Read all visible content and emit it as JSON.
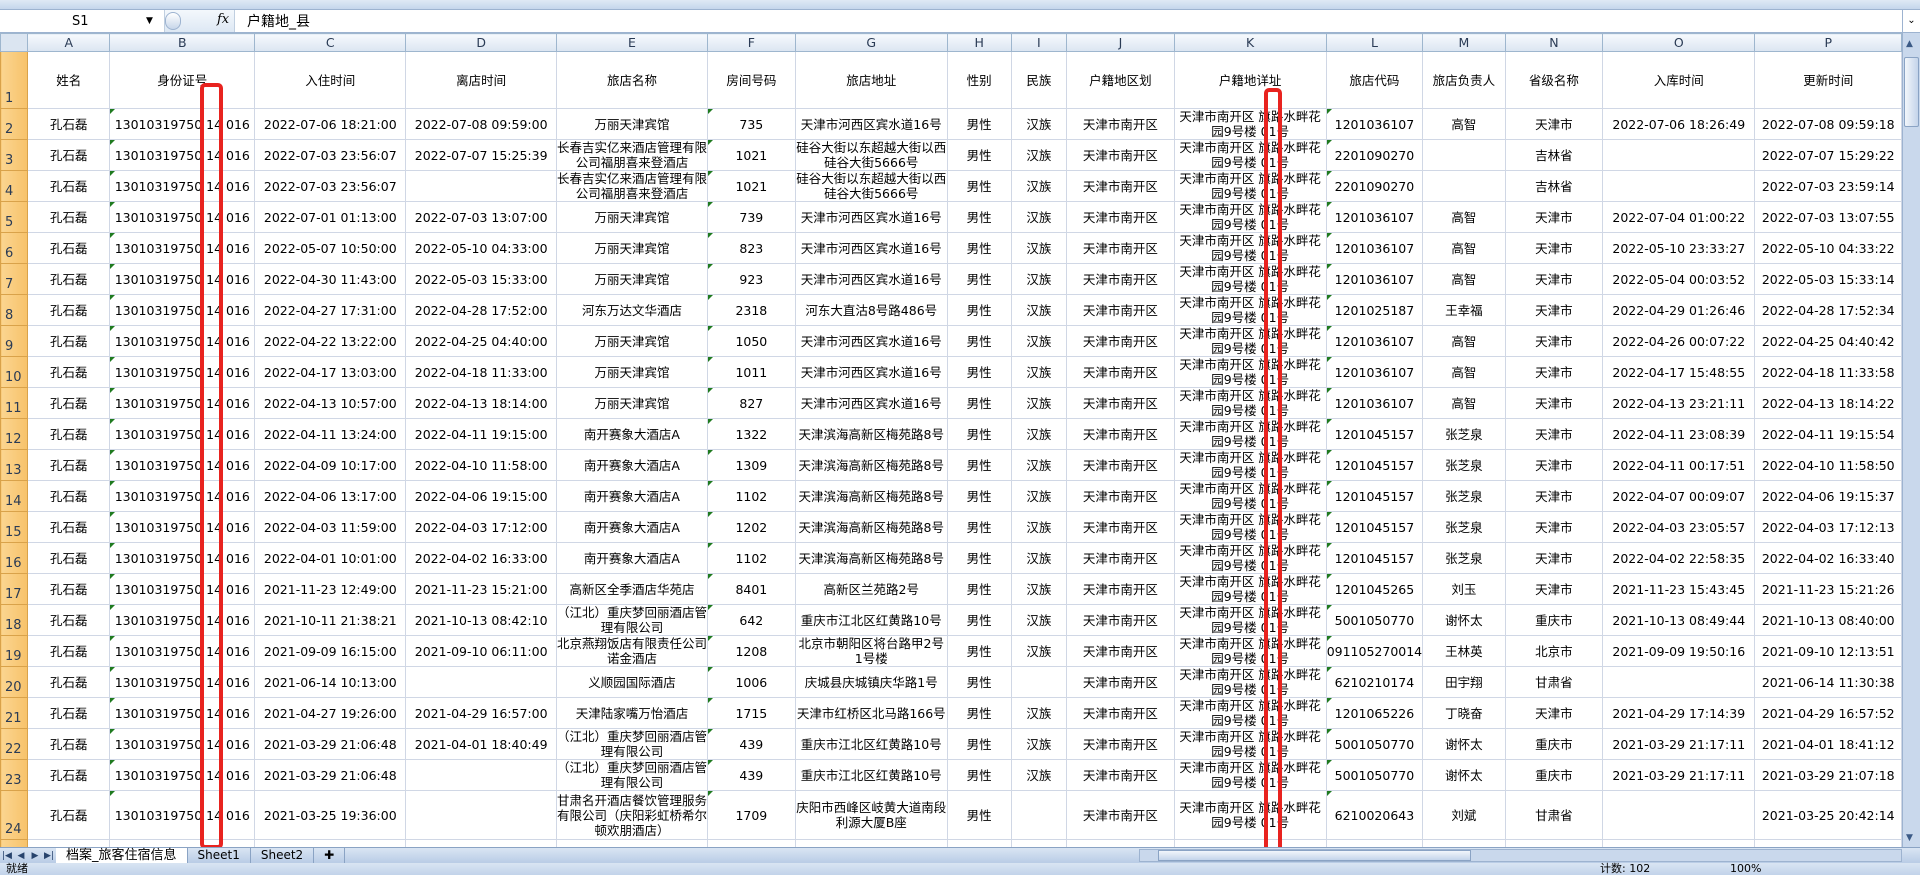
{
  "formula_bar": {
    "name_box": "S1",
    "fx_label": "fx",
    "content": "户籍地_县"
  },
  "columns": [
    "A",
    "B",
    "C",
    "D",
    "E",
    "F",
    "G",
    "H",
    "I",
    "J",
    "K",
    "L",
    "M",
    "N",
    "O",
    "P"
  ],
  "headers": [
    "姓名",
    "身份证号",
    "入住时间",
    "离店时间",
    "旅店名称",
    "房间号码",
    "旅店地址",
    "性别",
    "民族",
    "户籍地区划",
    "户籍地详址",
    "旅店代码",
    "旅店负责人",
    "省级名称",
    "入库时间",
    "更新时间"
  ],
  "rows": [
    {
      "num": "2",
      "cells": [
        "孔石磊",
        "13010319750 14 016",
        "2022-07-06 18:21:00",
        "2022-07-08 09:59:00",
        "万丽天津宾馆",
        "735",
        "天津市河西区宾水道16号",
        "男性",
        "汉族",
        "天津市南开区",
        "天津市南开区 旗路水畔花园9号楼 01号",
        "1201036107",
        "高智",
        "天津市",
        "2022-07-06 18:26:49",
        "2022-07-08 09:59:18"
      ]
    },
    {
      "num": "3",
      "cells": [
        "孔石磊",
        "13010319750 14 016",
        "2022-07-03 23:56:07",
        "2022-07-07 15:25:39",
        "长春吉实亿来酒店管理有限公司福朋喜来登酒店",
        "1021",
        "硅谷大街以东超越大街以西硅谷大街5666号",
        "男性",
        "汉族",
        "天津市南开区",
        "天津市南开区 旗路水畔花园9号楼 01号",
        "2201090270",
        "",
        "吉林省",
        "",
        "2022-07-07 15:29:22"
      ]
    },
    {
      "num": "4",
      "cells": [
        "孔石磊",
        "13010319750 14 016",
        "2022-07-03 23:56:07",
        "",
        "长春吉实亿来酒店管理有限公司福朋喜来登酒店",
        "1021",
        "硅谷大街以东超越大街以西硅谷大街5666号",
        "男性",
        "汉族",
        "天津市南开区",
        "天津市南开区 旗路水畔花园9号楼 01号",
        "2201090270",
        "",
        "吉林省",
        "",
        "2022-07-03 23:59:14"
      ]
    },
    {
      "num": "5",
      "cells": [
        "孔石磊",
        "13010319750 14 016",
        "2022-07-01 01:13:00",
        "2022-07-03 13:07:00",
        "万丽天津宾馆",
        "739",
        "天津市河西区宾水道16号",
        "男性",
        "汉族",
        "天津市南开区",
        "天津市南开区 旗路水畔花园9号楼 01号",
        "1201036107",
        "高智",
        "天津市",
        "2022-07-04 01:00:22",
        "2022-07-03 13:07:55"
      ]
    },
    {
      "num": "6",
      "cells": [
        "孔石磊",
        "13010319750 14 016",
        "2022-05-07 10:50:00",
        "2022-05-10 04:33:00",
        "万丽天津宾馆",
        "823",
        "天津市河西区宾水道16号",
        "男性",
        "汉族",
        "天津市南开区",
        "天津市南开区 旗路水畔花园9号楼 01号",
        "1201036107",
        "高智",
        "天津市",
        "2022-05-10 23:33:27",
        "2022-05-10 04:33:22"
      ]
    },
    {
      "num": "7",
      "cells": [
        "孔石磊",
        "13010319750 14 016",
        "2022-04-30 11:43:00",
        "2022-05-03 15:33:00",
        "万丽天津宾馆",
        "923",
        "天津市河西区宾水道16号",
        "男性",
        "汉族",
        "天津市南开区",
        "天津市南开区 旗路水畔花园9号楼 01号",
        "1201036107",
        "高智",
        "天津市",
        "2022-05-04 00:03:52",
        "2022-05-03 15:33:14"
      ]
    },
    {
      "num": "8",
      "cells": [
        "孔石磊",
        "13010319750 14 016",
        "2022-04-27 17:31:00",
        "2022-04-28 17:52:00",
        "河东万达文华酒店",
        "2318",
        "河东大直沽8号路486号",
        "男性",
        "汉族",
        "天津市南开区",
        "天津市南开区 旗路水畔花园9号楼 01号",
        "1201025187",
        "王幸福",
        "天津市",
        "2022-04-29 01:26:46",
        "2022-04-28 17:52:34"
      ]
    },
    {
      "num": "9",
      "cells": [
        "孔石磊",
        "13010319750 14 016",
        "2022-04-22 13:22:00",
        "2022-04-25 04:40:00",
        "万丽天津宾馆",
        "1050",
        "天津市河西区宾水道16号",
        "男性",
        "汉族",
        "天津市南开区",
        "天津市南开区 旗路水畔花园9号楼 01号",
        "1201036107",
        "高智",
        "天津市",
        "2022-04-26 00:07:22",
        "2022-04-25 04:40:42"
      ]
    },
    {
      "num": "10",
      "cells": [
        "孔石磊",
        "13010319750 14 016",
        "2022-04-17 13:03:00",
        "2022-04-18 11:33:00",
        "万丽天津宾馆",
        "1011",
        "天津市河西区宾水道16号",
        "男性",
        "汉族",
        "天津市南开区",
        "天津市南开区 旗路水畔花园9号楼 01号",
        "1201036107",
        "高智",
        "天津市",
        "2022-04-17 15:48:55",
        "2022-04-18 11:33:58"
      ]
    },
    {
      "num": "11",
      "cells": [
        "孔石磊",
        "13010319750 14 016",
        "2022-04-13 10:57:00",
        "2022-04-13 18:14:00",
        "万丽天津宾馆",
        "827",
        "天津市河西区宾水道16号",
        "男性",
        "汉族",
        "天津市南开区",
        "天津市南开区 旗路水畔花园9号楼 01号",
        "1201036107",
        "高智",
        "天津市",
        "2022-04-13 23:21:11",
        "2022-04-13 18:14:22"
      ]
    },
    {
      "num": "12",
      "cells": [
        "孔石磊",
        "13010319750 14 016",
        "2022-04-11 13:24:00",
        "2022-04-11 19:15:00",
        "南开赛象大酒店A",
        "1322",
        "天津滨海高新区梅苑路8号",
        "男性",
        "汉族",
        "天津市南开区",
        "天津市南开区 旗路水畔花园9号楼 01号",
        "1201045157",
        "张芝泉",
        "天津市",
        "2022-04-11 23:08:39",
        "2022-04-11 19:15:54"
      ]
    },
    {
      "num": "13",
      "cells": [
        "孔石磊",
        "13010319750 14 016",
        "2022-04-09 10:17:00",
        "2022-04-10 11:58:00",
        "南开赛象大酒店A",
        "1309",
        "天津滨海高新区梅苑路8号",
        "男性",
        "汉族",
        "天津市南开区",
        "天津市南开区 旗路水畔花园9号楼 01号",
        "1201045157",
        "张芝泉",
        "天津市",
        "2022-04-11 00:17:51",
        "2022-04-10 11:58:50"
      ]
    },
    {
      "num": "14",
      "cells": [
        "孔石磊",
        "13010319750 14 016",
        "2022-04-06 13:17:00",
        "2022-04-06 19:15:00",
        "南开赛象大酒店A",
        "1102",
        "天津滨海高新区梅苑路8号",
        "男性",
        "汉族",
        "天津市南开区",
        "天津市南开区 旗路水畔花园9号楼 01号",
        "1201045157",
        "张芝泉",
        "天津市",
        "2022-04-07 00:09:07",
        "2022-04-06 19:15:37"
      ]
    },
    {
      "num": "15",
      "cells": [
        "孔石磊",
        "13010319750 14 016",
        "2022-04-03 11:59:00",
        "2022-04-03 17:12:00",
        "南开赛象大酒店A",
        "1202",
        "天津滨海高新区梅苑路8号",
        "男性",
        "汉族",
        "天津市南开区",
        "天津市南开区 旗路水畔花园9号楼 01号",
        "1201045157",
        "张芝泉",
        "天津市",
        "2022-04-03 23:05:57",
        "2022-04-03 17:12:13"
      ]
    },
    {
      "num": "16",
      "cells": [
        "孔石磊",
        "13010319750 14 016",
        "2022-04-01 10:01:00",
        "2022-04-02 16:33:00",
        "南开赛象大酒店A",
        "1102",
        "天津滨海高新区梅苑路8号",
        "男性",
        "汉族",
        "天津市南开区",
        "天津市南开区 旗路水畔花园9号楼 01号",
        "1201045157",
        "张芝泉",
        "天津市",
        "2022-04-02 22:58:35",
        "2022-04-02 16:33:40"
      ]
    },
    {
      "num": "17",
      "cells": [
        "孔石磊",
        "13010319750 14 016",
        "2021-11-23 12:49:00",
        "2021-11-23 15:21:00",
        "高新区全季酒店华苑店",
        "8401",
        "高新区兰苑路2号",
        "男性",
        "汉族",
        "天津市南开区",
        "天津市南开区 旗路水畔花园9号楼 01号",
        "1201045265",
        "刘玉",
        "天津市",
        "2021-11-23 15:43:45",
        "2021-11-23 15:21:26"
      ]
    },
    {
      "num": "18",
      "cells": [
        "孔石磊",
        "13010319750 14 016",
        "2021-10-11 21:38:21",
        "2021-10-13 08:42:10",
        "（江北）重庆梦回丽酒店管理有限公司",
        "642",
        "重庆市江北区红黄路10号",
        "男性",
        "汉族",
        "天津市南开区",
        "天津市南开区 旗路水畔花园9号楼 01号",
        "5001050770",
        "谢怀太",
        "重庆市",
        "2021-10-13 08:49:44",
        "2021-10-13 08:40:00"
      ]
    },
    {
      "num": "19",
      "cells": [
        "孔石磊",
        "13010319750 14 016",
        "2021-09-09 16:15:00",
        "2021-09-10 06:11:00",
        "北京燕翔饭店有限责任公司诺金酒店",
        "1208",
        "北京市朝阳区将台路甲2号1号楼",
        "男性",
        "汉族",
        "天津市南开区",
        "天津市南开区 旗路水畔花园9号楼 01号",
        "091105270014",
        "王林英",
        "北京市",
        "2021-09-09 19:50:16",
        "2021-09-10 12:13:51"
      ]
    },
    {
      "num": "20",
      "cells": [
        "孔石磊",
        "13010319750 14 016",
        "2021-06-14 10:13:00",
        "",
        "义顺园国际酒店",
        "1006",
        "庆城县庆城镇庆华路1号",
        "男性",
        "",
        "天津市南开区",
        "天津市南开区 旗路水畔花园9号楼 01号",
        "6210210174",
        "田宇翔",
        "甘肃省",
        "",
        "2021-06-14 11:30:38"
      ]
    },
    {
      "num": "21",
      "cells": [
        "孔石磊",
        "13010319750 14 016",
        "2021-04-27 19:26:00",
        "2021-04-29 16:57:00",
        "天津陆家嘴万怡酒店",
        "1715",
        "天津市红桥区北马路166号",
        "男性",
        "汉族",
        "天津市南开区",
        "天津市南开区 旗路水畔花园9号楼 01号",
        "1201065226",
        "丁晓奋",
        "天津市",
        "2021-04-29 17:14:39",
        "2021-04-29 16:57:52"
      ]
    },
    {
      "num": "22",
      "cells": [
        "孔石磊",
        "13010319750 14 016",
        "2021-03-29 21:06:48",
        "2021-04-01 18:40:49",
        "（江北）重庆梦回丽酒店管理有限公司",
        "439",
        "重庆市江北区红黄路10号",
        "男性",
        "汉族",
        "天津市南开区",
        "天津市南开区 旗路水畔花园9号楼 01号",
        "5001050770",
        "谢怀太",
        "重庆市",
        "2021-03-29 21:17:11",
        "2021-04-01 18:41:12"
      ]
    },
    {
      "num": "23",
      "cells": [
        "孔石磊",
        "13010319750 14 016",
        "2021-03-29 21:06:48",
        "",
        "（江北）重庆梦回丽酒店管理有限公司",
        "439",
        "重庆市江北区红黄路10号",
        "男性",
        "汉族",
        "天津市南开区",
        "天津市南开区 旗路水畔花园9号楼 01号",
        "5001050770",
        "谢怀太",
        "重庆市",
        "2021-03-29 21:17:11",
        "2021-03-29 21:07:18"
      ]
    },
    {
      "num": "24",
      "cells": [
        "孔石磊",
        "13010319750 14 016",
        "2021-03-25 19:36:00",
        "",
        "甘肃名开酒店餐饮管理服务有限公司（庆阳彩虹桥希尔顿欢朋酒店）",
        "1709",
        "庆阳市西峰区岐黄大道南段利源大厦B座",
        "男性",
        "",
        "天津市南开区",
        "天津市南开区 旗路水畔花园9号楼 01号",
        "6210020643",
        "刘斌",
        "甘肃省",
        "",
        "2021-03-25 20:42:14"
      ]
    }
  ],
  "sheet_tabs": [
    "档案_旅客住宿信息",
    "Sheet1",
    "Sheet2"
  ],
  "status_bar": {
    "ready": "就绪",
    "count": "计数: 102",
    "zoom": "100%"
  },
  "colors": {
    "highlight_box": "#e8231f",
    "row_header": "#f7c26a",
    "col_header": "#dbe5f1"
  }
}
